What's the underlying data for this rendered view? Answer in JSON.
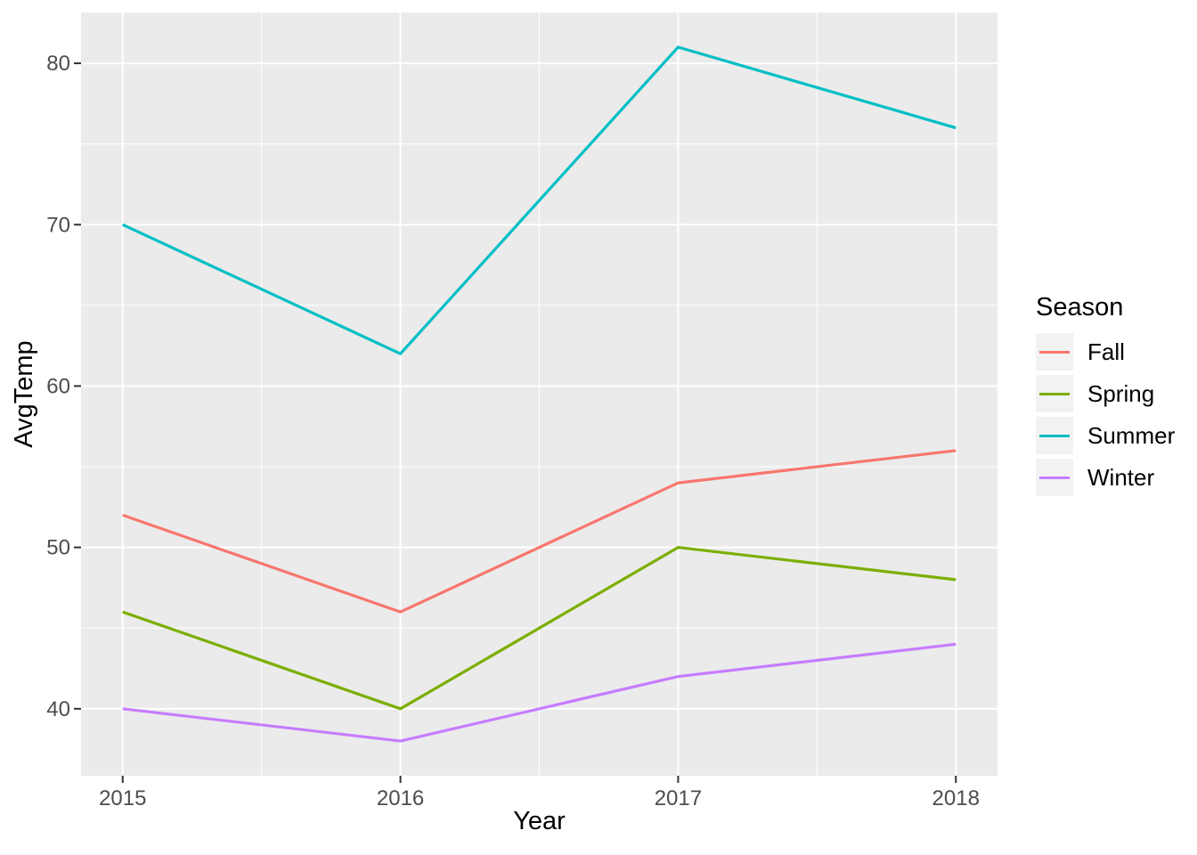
{
  "colors": {
    "page_background": "#FFFFFF",
    "panel_background": "#EBEBEB",
    "grid": "#FFFFFF",
    "tick_label": "#4D4D4D",
    "tick_mark": "#333333",
    "axis_title": "#000000",
    "legend_key_background": "#F2F2F2"
  },
  "chart_data": {
    "type": "line",
    "title": "",
    "xlabel": "Year",
    "ylabel": "AvgTemp",
    "x": [
      2015,
      2016,
      2017,
      2018
    ],
    "series": [
      {
        "name": "Fall",
        "color": "#F8766D",
        "values": [
          52,
          46,
          54,
          56
        ]
      },
      {
        "name": "Spring",
        "color": "#7CAE00",
        "values": [
          46,
          40,
          50,
          48
        ]
      },
      {
        "name": "Summer",
        "color": "#00BFC4",
        "values": [
          70,
          62,
          81,
          76
        ]
      },
      {
        "name": "Winter",
        "color": "#C77CFF",
        "values": [
          40,
          38,
          42,
          44
        ]
      }
    ],
    "legend": {
      "title": "Season",
      "position": "right",
      "entries": [
        "Fall",
        "Spring",
        "Summer",
        "Winter"
      ]
    },
    "axes": {
      "x_ticks": [
        2015,
        2016,
        2017,
        2018
      ],
      "x_tick_labels": [
        "2015",
        "2016",
        "2017",
        "2018"
      ],
      "x_minor_ticks": [
        2015.5,
        2016.5,
        2017.5
      ],
      "xlim": [
        2014.85,
        2018.15
      ],
      "y_ticks": [
        40,
        50,
        60,
        70,
        80
      ],
      "y_tick_labels": [
        "40",
        "50",
        "60",
        "70",
        "80"
      ],
      "y_minor_ticks": [
        45,
        55,
        65,
        75
      ],
      "ylim": [
        35.85,
        83.15
      ]
    },
    "grid": "major+minor"
  }
}
